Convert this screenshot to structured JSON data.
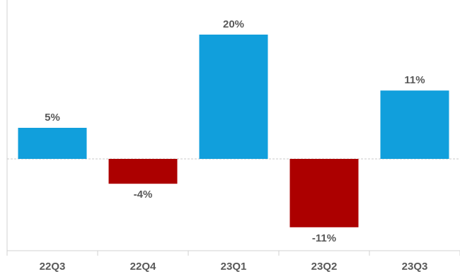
{
  "chart_data": {
    "type": "bar",
    "categories": [
      "22Q3",
      "22Q4",
      "23Q1",
      "23Q2",
      "23Q3"
    ],
    "values": [
      5,
      -4,
      20,
      -11,
      11
    ],
    "value_labels": [
      "5%",
      "-4%",
      "20%",
      "-11%",
      "11%"
    ],
    "title": "",
    "xlabel": "",
    "ylabel": "",
    "ylim": [
      -14,
      22
    ],
    "grid": false,
    "legend": "none",
    "colors": {
      "positive": "#119fdc",
      "negative": "#ac0000",
      "label_text": "#595959",
      "axis": "#d0d0d0",
      "zero_line": "#c8c8c8"
    }
  }
}
